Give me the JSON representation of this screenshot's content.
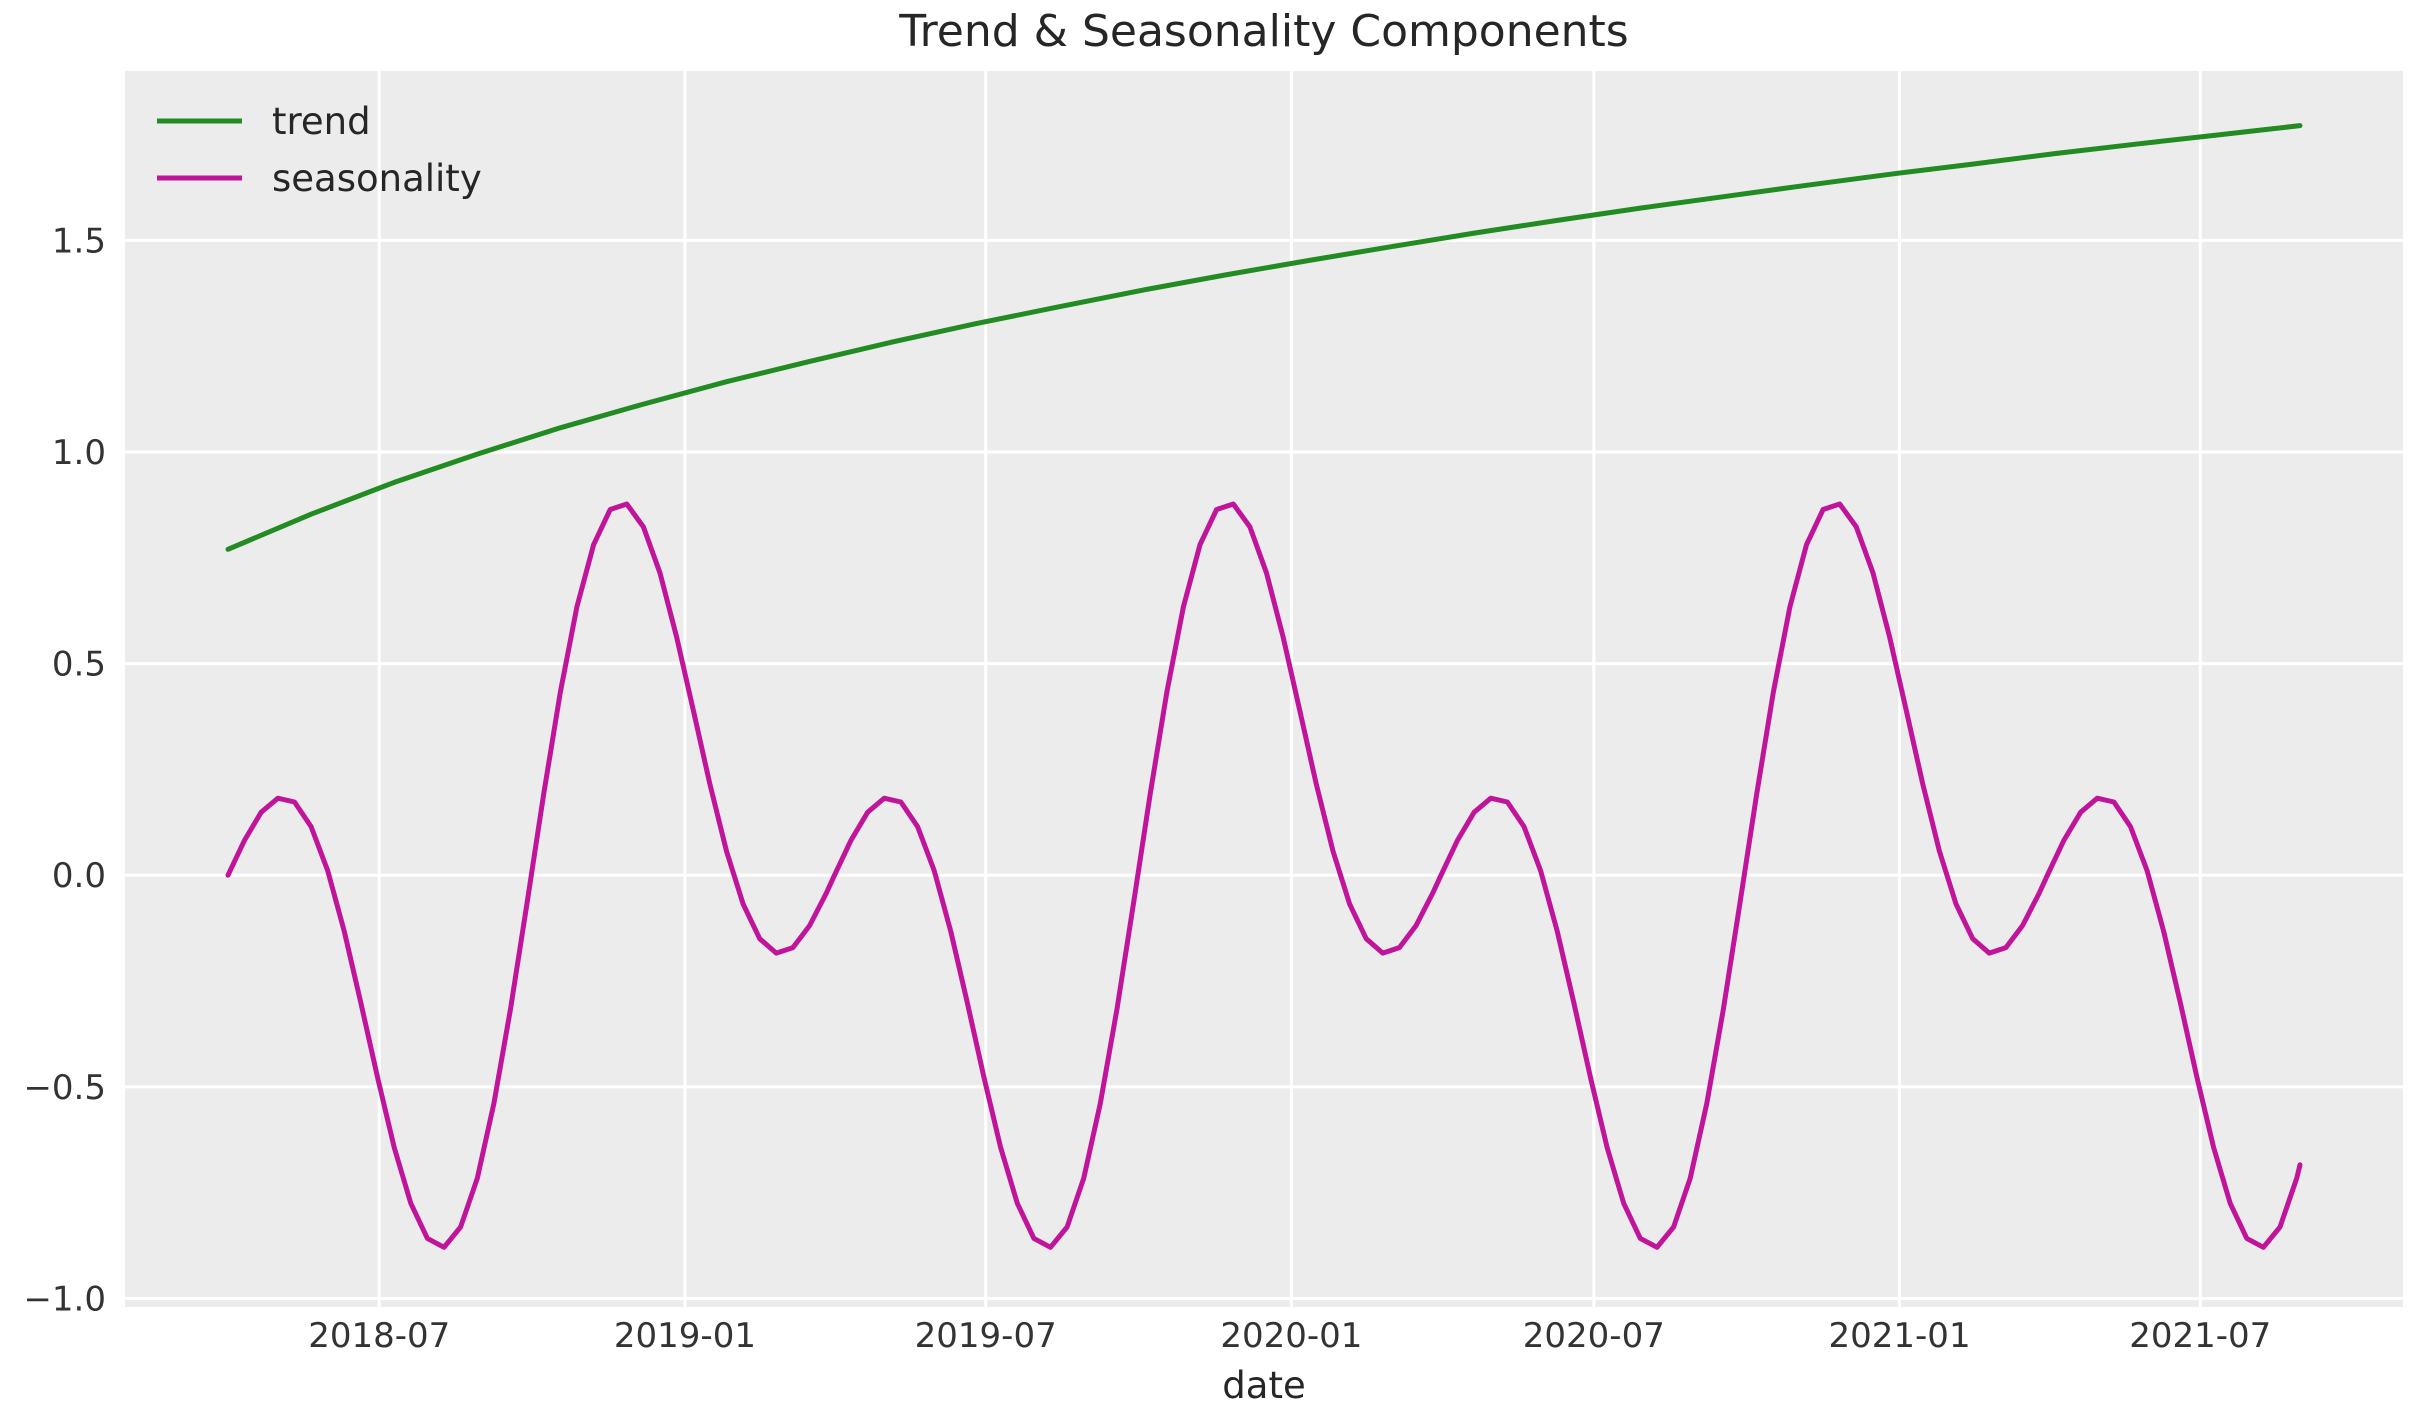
{
  "chart_data": {
    "type": "line",
    "title": "Trend & Seasonality Components",
    "xlabel": "date",
    "ylabel": "",
    "grid": true,
    "plot_background": "#ECECEC",
    "grid_color": "#FFFFFF",
    "text_color": "#262626",
    "legend": {
      "position": "upper left",
      "entries": [
        "trend",
        "seasonality"
      ]
    },
    "x_axis": {
      "unit": "days since 2018-04-01",
      "epoch": "2018-04-01",
      "lim": [
        -62,
        1309
      ],
      "ticks": [
        {
          "t": 91,
          "label": "2018-07"
        },
        {
          "t": 275,
          "label": "2019-01"
        },
        {
          "t": 456,
          "label": "2019-07"
        },
        {
          "t": 640,
          "label": "2020-01"
        },
        {
          "t": 822,
          "label": "2020-07"
        },
        {
          "t": 1006,
          "label": "2021-01"
        },
        {
          "t": 1187,
          "label": "2021-07"
        }
      ]
    },
    "y_axis": {
      "lim": [
        -1.02,
        1.9
      ],
      "ticks": [
        1.5,
        1.0,
        0.5,
        0.0,
        -0.5,
        -1.0
      ],
      "tick_labels": [
        "1.5",
        "1.0",
        "0.5",
        "0.0",
        "−0.5",
        "−1.0"
      ]
    },
    "series": [
      {
        "name": "trend",
        "color": "#228B22",
        "points": [
          [
            0,
            0.77
          ],
          [
            50,
            0.853
          ],
          [
            100,
            0.928
          ],
          [
            150,
            0.995
          ],
          [
            200,
            1.057
          ],
          [
            250,
            1.113
          ],
          [
            300,
            1.166
          ],
          [
            350,
            1.214
          ],
          [
            400,
            1.26
          ],
          [
            450,
            1.303
          ],
          [
            500,
            1.343
          ],
          [
            550,
            1.382
          ],
          [
            600,
            1.418
          ],
          [
            650,
            1.452
          ],
          [
            700,
            1.485
          ],
          [
            750,
            1.517
          ],
          [
            800,
            1.547
          ],
          [
            850,
            1.576
          ],
          [
            900,
            1.603
          ],
          [
            950,
            1.63
          ],
          [
            1000,
            1.656
          ],
          [
            1050,
            1.68
          ],
          [
            1100,
            1.705
          ],
          [
            1150,
            1.728
          ],
          [
            1200,
            1.75
          ],
          [
            1247,
            1.771
          ]
        ]
      },
      {
        "name": "seasonality",
        "color": "#C0159B",
        "points": [
          [
            0,
            0.0
          ],
          [
            10,
            0.083
          ],
          [
            20,
            0.149
          ],
          [
            30,
            0.182
          ],
          [
            40,
            0.173
          ],
          [
            50,
            0.115
          ],
          [
            60,
            0.011
          ],
          [
            70,
            -0.133
          ],
          [
            80,
            -0.302
          ],
          [
            90,
            -0.478
          ],
          [
            100,
            -0.643
          ],
          [
            110,
            -0.775
          ],
          [
            120,
            -0.858
          ],
          [
            130,
            -0.879
          ],
          [
            140,
            -0.831
          ],
          [
            150,
            -0.716
          ],
          [
            160,
            -0.539
          ],
          [
            170,
            -0.316
          ],
          [
            180,
            -0.065
          ],
          [
            190,
            0.192
          ],
          [
            200,
            0.432
          ],
          [
            210,
            0.634
          ],
          [
            220,
            0.781
          ],
          [
            230,
            0.864
          ],
          [
            240,
            0.877
          ],
          [
            250,
            0.823
          ],
          [
            260,
            0.714
          ],
          [
            270,
            0.563
          ],
          [
            280,
            0.39
          ],
          [
            290,
            0.215
          ],
          [
            300,
            0.057
          ],
          [
            310,
            -0.068
          ],
          [
            320,
            -0.15
          ],
          [
            330,
            -0.184
          ],
          [
            340,
            -0.171
          ],
          [
            350,
            -0.119
          ],
          [
            360,
            -0.043
          ],
          [
            365,
            0.0
          ],
          [
            375,
            0.083
          ],
          [
            385,
            0.149
          ],
          [
            395,
            0.182
          ],
          [
            405,
            0.173
          ],
          [
            415,
            0.115
          ],
          [
            425,
            0.011
          ],
          [
            435,
            -0.133
          ],
          [
            445,
            -0.302
          ],
          [
            455,
            -0.478
          ],
          [
            465,
            -0.643
          ],
          [
            475,
            -0.775
          ],
          [
            485,
            -0.858
          ],
          [
            495,
            -0.879
          ],
          [
            505,
            -0.831
          ],
          [
            515,
            -0.716
          ],
          [
            525,
            -0.539
          ],
          [
            535,
            -0.316
          ],
          [
            545,
            -0.065
          ],
          [
            555,
            0.192
          ],
          [
            565,
            0.432
          ],
          [
            575,
            0.634
          ],
          [
            585,
            0.781
          ],
          [
            595,
            0.864
          ],
          [
            605,
            0.877
          ],
          [
            615,
            0.823
          ],
          [
            625,
            0.714
          ],
          [
            635,
            0.563
          ],
          [
            645,
            0.39
          ],
          [
            655,
            0.215
          ],
          [
            665,
            0.057
          ],
          [
            675,
            -0.068
          ],
          [
            685,
            -0.15
          ],
          [
            695,
            -0.184
          ],
          [
            705,
            -0.171
          ],
          [
            715,
            -0.119
          ],
          [
            725,
            -0.043
          ],
          [
            730,
            0.0
          ],
          [
            740,
            0.083
          ],
          [
            750,
            0.149
          ],
          [
            760,
            0.182
          ],
          [
            770,
            0.173
          ],
          [
            780,
            0.115
          ],
          [
            790,
            0.011
          ],
          [
            800,
            -0.133
          ],
          [
            810,
            -0.302
          ],
          [
            820,
            -0.478
          ],
          [
            830,
            -0.643
          ],
          [
            840,
            -0.775
          ],
          [
            850,
            -0.858
          ],
          [
            860,
            -0.879
          ],
          [
            870,
            -0.831
          ],
          [
            880,
            -0.716
          ],
          [
            890,
            -0.539
          ],
          [
            900,
            -0.316
          ],
          [
            910,
            -0.065
          ],
          [
            920,
            0.192
          ],
          [
            930,
            0.432
          ],
          [
            940,
            0.634
          ],
          [
            950,
            0.781
          ],
          [
            960,
            0.864
          ],
          [
            970,
            0.877
          ],
          [
            980,
            0.823
          ],
          [
            990,
            0.714
          ],
          [
            1000,
            0.563
          ],
          [
            1010,
            0.39
          ],
          [
            1020,
            0.215
          ],
          [
            1030,
            0.057
          ],
          [
            1040,
            -0.068
          ],
          [
            1050,
            -0.15
          ],
          [
            1060,
            -0.184
          ],
          [
            1070,
            -0.171
          ],
          [
            1080,
            -0.119
          ],
          [
            1090,
            -0.043
          ],
          [
            1095,
            0.0
          ],
          [
            1105,
            0.083
          ],
          [
            1115,
            0.149
          ],
          [
            1125,
            0.182
          ],
          [
            1135,
            0.173
          ],
          [
            1145,
            0.115
          ],
          [
            1155,
            0.011
          ],
          [
            1165,
            -0.133
          ],
          [
            1175,
            -0.302
          ],
          [
            1185,
            -0.478
          ],
          [
            1195,
            -0.643
          ],
          [
            1205,
            -0.775
          ],
          [
            1215,
            -0.858
          ],
          [
            1225,
            -0.879
          ],
          [
            1235,
            -0.831
          ],
          [
            1245,
            -0.716
          ],
          [
            1247,
            -0.684
          ]
        ]
      }
    ]
  }
}
